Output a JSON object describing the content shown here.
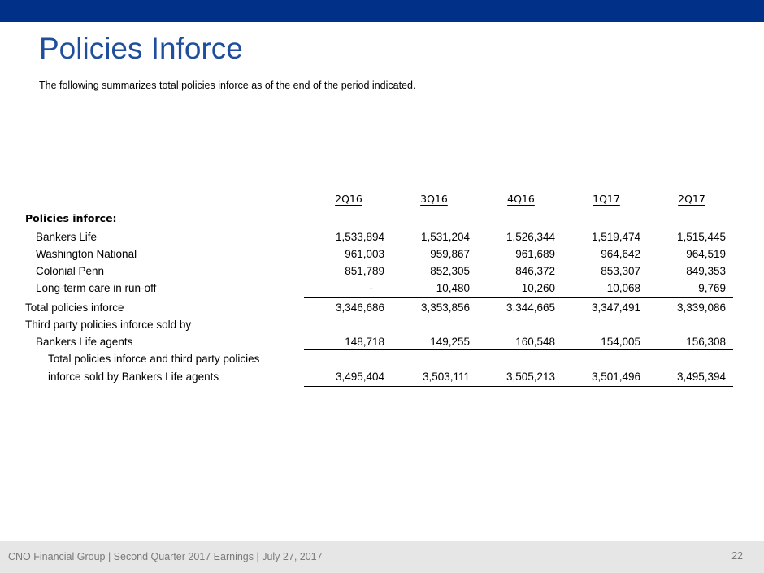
{
  "colors": {
    "topbar": "#003087",
    "title": "#1f4e9c",
    "footer_bg": "#e6e6e6",
    "footer_text": "#7a7a7a"
  },
  "title": "Policies Inforce",
  "subtitle": "The following summarizes total policies inforce as of the end of the period indicated.",
  "table": {
    "columns": [
      "2Q16",
      "3Q16",
      "4Q16",
      "1Q17",
      "2Q17"
    ],
    "section_label": "Policies inforce:",
    "rows": {
      "bankers_life": {
        "label": "Bankers Life",
        "values": [
          "1,533,894",
          "1,531,204",
          "1,526,344",
          "1,519,474",
          "1,515,445"
        ]
      },
      "washington_national": {
        "label": "Washington National",
        "values": [
          "961,003",
          "959,867",
          "961,689",
          "964,642",
          "964,519"
        ]
      },
      "colonial_penn": {
        "label": "Colonial Penn",
        "values": [
          "851,789",
          "852,305",
          "846,372",
          "853,307",
          "849,353"
        ]
      },
      "ltc_runoff": {
        "label": "Long-term care in run-off",
        "values": [
          "-",
          "10,480",
          "10,260",
          "10,068",
          "9,769"
        ]
      },
      "total_policies": {
        "label": "Total policies inforce",
        "values": [
          "3,346,686",
          "3,353,856",
          "3,344,665",
          "3,347,491",
          "3,339,086"
        ]
      },
      "third_party_header": {
        "label": "Third party policies inforce sold by"
      },
      "bankers_life_agents": {
        "label": "Bankers Life agents",
        "values": [
          "148,718",
          "149,255",
          "160,548",
          "154,005",
          "156,308"
        ]
      },
      "grand_total": {
        "label_line1": "Total policies inforce and third party policies",
        "label_line2": "inforce sold by Bankers Life agents",
        "values": [
          "3,495,404",
          "3,503,111",
          "3,505,213",
          "3,501,496",
          "3,495,394"
        ]
      }
    }
  },
  "footer": {
    "text": "CNO Financial Group | Second Quarter 2017 Earnings | July 27, 2017",
    "page_number": "22"
  }
}
